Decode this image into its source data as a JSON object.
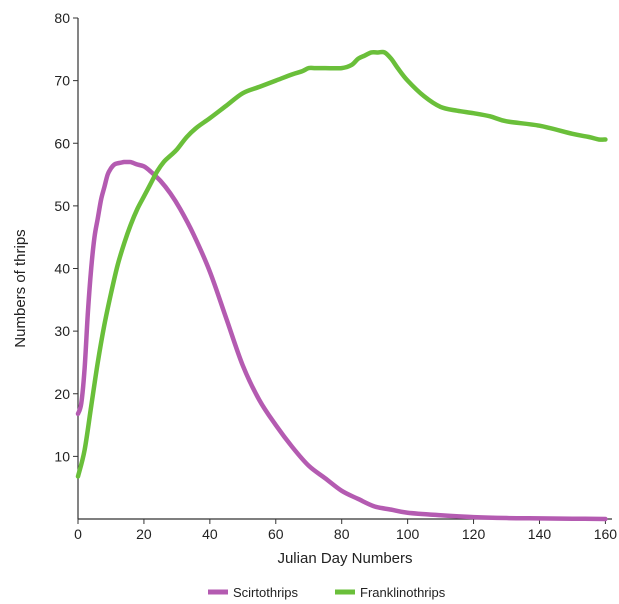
{
  "chart_data": {
    "type": "line",
    "xlabel": "Julian Day Numbers",
    "ylabel": "Numbers of thrips",
    "xlim": [
      0,
      162
    ],
    "ylim": [
      0,
      80
    ],
    "xticks": [
      0,
      20,
      40,
      60,
      80,
      100,
      120,
      140,
      160
    ],
    "yticks": [
      10,
      20,
      30,
      40,
      50,
      60,
      70,
      80
    ],
    "grid": false,
    "legend_position": "bottom",
    "series": [
      {
        "name": "Scirtothrips",
        "color": "#b45bb1",
        "x": [
          0,
          1,
          2,
          3,
          4,
          5,
          6,
          7,
          8,
          9,
          10,
          11,
          12,
          13,
          14,
          15,
          16,
          17,
          18,
          20,
          22,
          25,
          28,
          31,
          35,
          40,
          45,
          50,
          55,
          60,
          65,
          70,
          75,
          80,
          85,
          90,
          95,
          100,
          110,
          120,
          130,
          140,
          150,
          160
        ],
        "y": [
          16.8,
          18.5,
          24,
          33,
          40,
          45,
          48,
          51,
          53,
          55,
          56,
          56.6,
          56.8,
          56.9,
          57,
          57,
          57,
          56.8,
          56.6,
          56.3,
          55.5,
          54,
          52,
          49.5,
          45.5,
          39.5,
          32,
          24.5,
          19,
          15,
          11.5,
          8.5,
          6.5,
          4.5,
          3.2,
          2,
          1.5,
          1,
          0.6,
          0.3,
          0.15,
          0.1,
          0.05,
          0
        ]
      },
      {
        "name": "Franklinothrips",
        "color": "#6abf3a",
        "x": [
          0,
          2,
          4,
          6,
          8,
          10,
          12,
          14,
          16,
          18,
          20,
          22,
          24,
          26,
          28,
          30,
          33,
          36,
          40,
          45,
          50,
          55,
          60,
          65,
          68,
          70,
          72,
          75,
          80,
          83,
          85,
          87,
          89,
          91,
          93,
          95,
          97,
          100,
          105,
          110,
          115,
          120,
          125,
          130,
          140,
          150,
          155,
          158,
          160
        ],
        "y": [
          6.8,
          11,
          18,
          25,
          31,
          36,
          40.5,
          44,
          47,
          49.5,
          51.5,
          53.5,
          55.5,
          57,
          58,
          59,
          61,
          62.5,
          64,
          66,
          68,
          69,
          70,
          71,
          71.5,
          72,
          72,
          72,
          72,
          72.5,
          73.5,
          74,
          74.5,
          74.5,
          74.5,
          73.5,
          72,
          70,
          67.5,
          65.8,
          65.2,
          64.8,
          64.3,
          63.5,
          62.8,
          61.5,
          61,
          60.6,
          60.6
        ]
      }
    ]
  }
}
